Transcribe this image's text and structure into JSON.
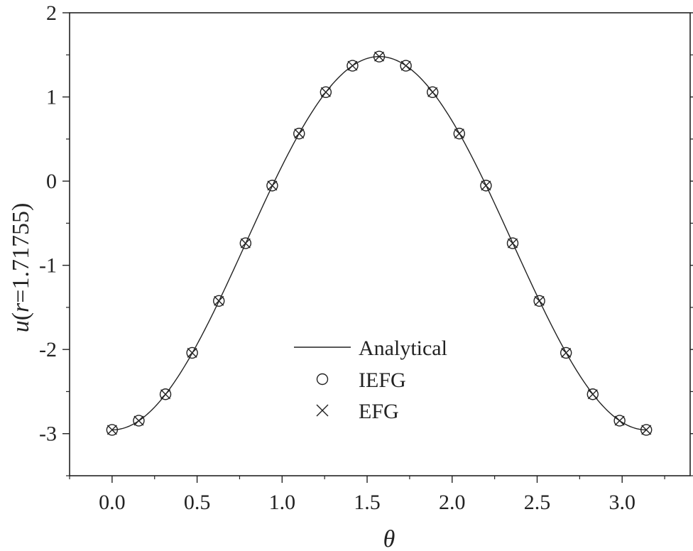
{
  "chart_data": {
    "type": "line",
    "xlabel": "θ",
    "ylabel_prefix": "u",
    "ylabel_open": "(",
    "ylabel_var": "r",
    "ylabel_rest": "=1.71755)",
    "xlim": [
      -0.25,
      3.4
    ],
    "ylim": [
      -3.5,
      2
    ],
    "x_ticks": [
      0.0,
      0.5,
      1.0,
      1.5,
      2.0,
      2.5,
      3.0
    ],
    "x_tick_labels": [
      "0.0",
      "0.5",
      "1.0",
      "1.5",
      "2.0",
      "2.5",
      "3.0"
    ],
    "y_ticks": [
      2,
      1,
      0,
      -1,
      -2,
      -3
    ],
    "y_tick_labels": [
      "2",
      "1",
      "0",
      "-1",
      "-2",
      "-3"
    ],
    "grid": false,
    "legend_position": "lower-center",
    "series": [
      {
        "name": "Analytical",
        "style": "solid-line",
        "model": "offset + amplitude * sin(theta - 0.0007)^2",
        "offset": -2.955,
        "amplitude": 4.435,
        "x_range": [
          0.0,
          3.1416
        ]
      },
      {
        "name": "IEFG",
        "style": "open-circle",
        "x": [
          0.0,
          0.157,
          0.314,
          0.471,
          0.628,
          0.785,
          0.942,
          1.1,
          1.257,
          1.414,
          1.571,
          1.728,
          1.885,
          2.042,
          2.199,
          2.356,
          2.513,
          2.67,
          2.827,
          2.985,
          3.142
        ],
        "y": [
          -2.955,
          -2.846,
          -2.532,
          -2.04,
          -1.423,
          -0.738,
          -0.053,
          0.565,
          1.057,
          1.371,
          1.48,
          1.371,
          1.057,
          0.565,
          -0.053,
          -0.738,
          -1.423,
          -2.04,
          -2.532,
          -2.846,
          -2.955
        ]
      },
      {
        "name": "EFG",
        "style": "cross",
        "x": [
          0.0,
          0.157,
          0.314,
          0.471,
          0.628,
          0.785,
          0.942,
          1.1,
          1.257,
          1.414,
          1.571,
          1.728,
          1.885,
          2.042,
          2.199,
          2.356,
          2.513,
          2.67,
          2.827,
          2.985,
          3.142
        ],
        "y": [
          -2.955,
          -2.846,
          -2.532,
          -2.04,
          -1.423,
          -0.738,
          -0.053,
          0.565,
          1.057,
          1.371,
          1.48,
          1.371,
          1.057,
          0.565,
          -0.053,
          -0.738,
          -1.423,
          -2.04,
          -2.532,
          -2.846,
          -2.955
        ]
      }
    ],
    "colors": {
      "line": "#222222",
      "marker": "#222222"
    }
  }
}
